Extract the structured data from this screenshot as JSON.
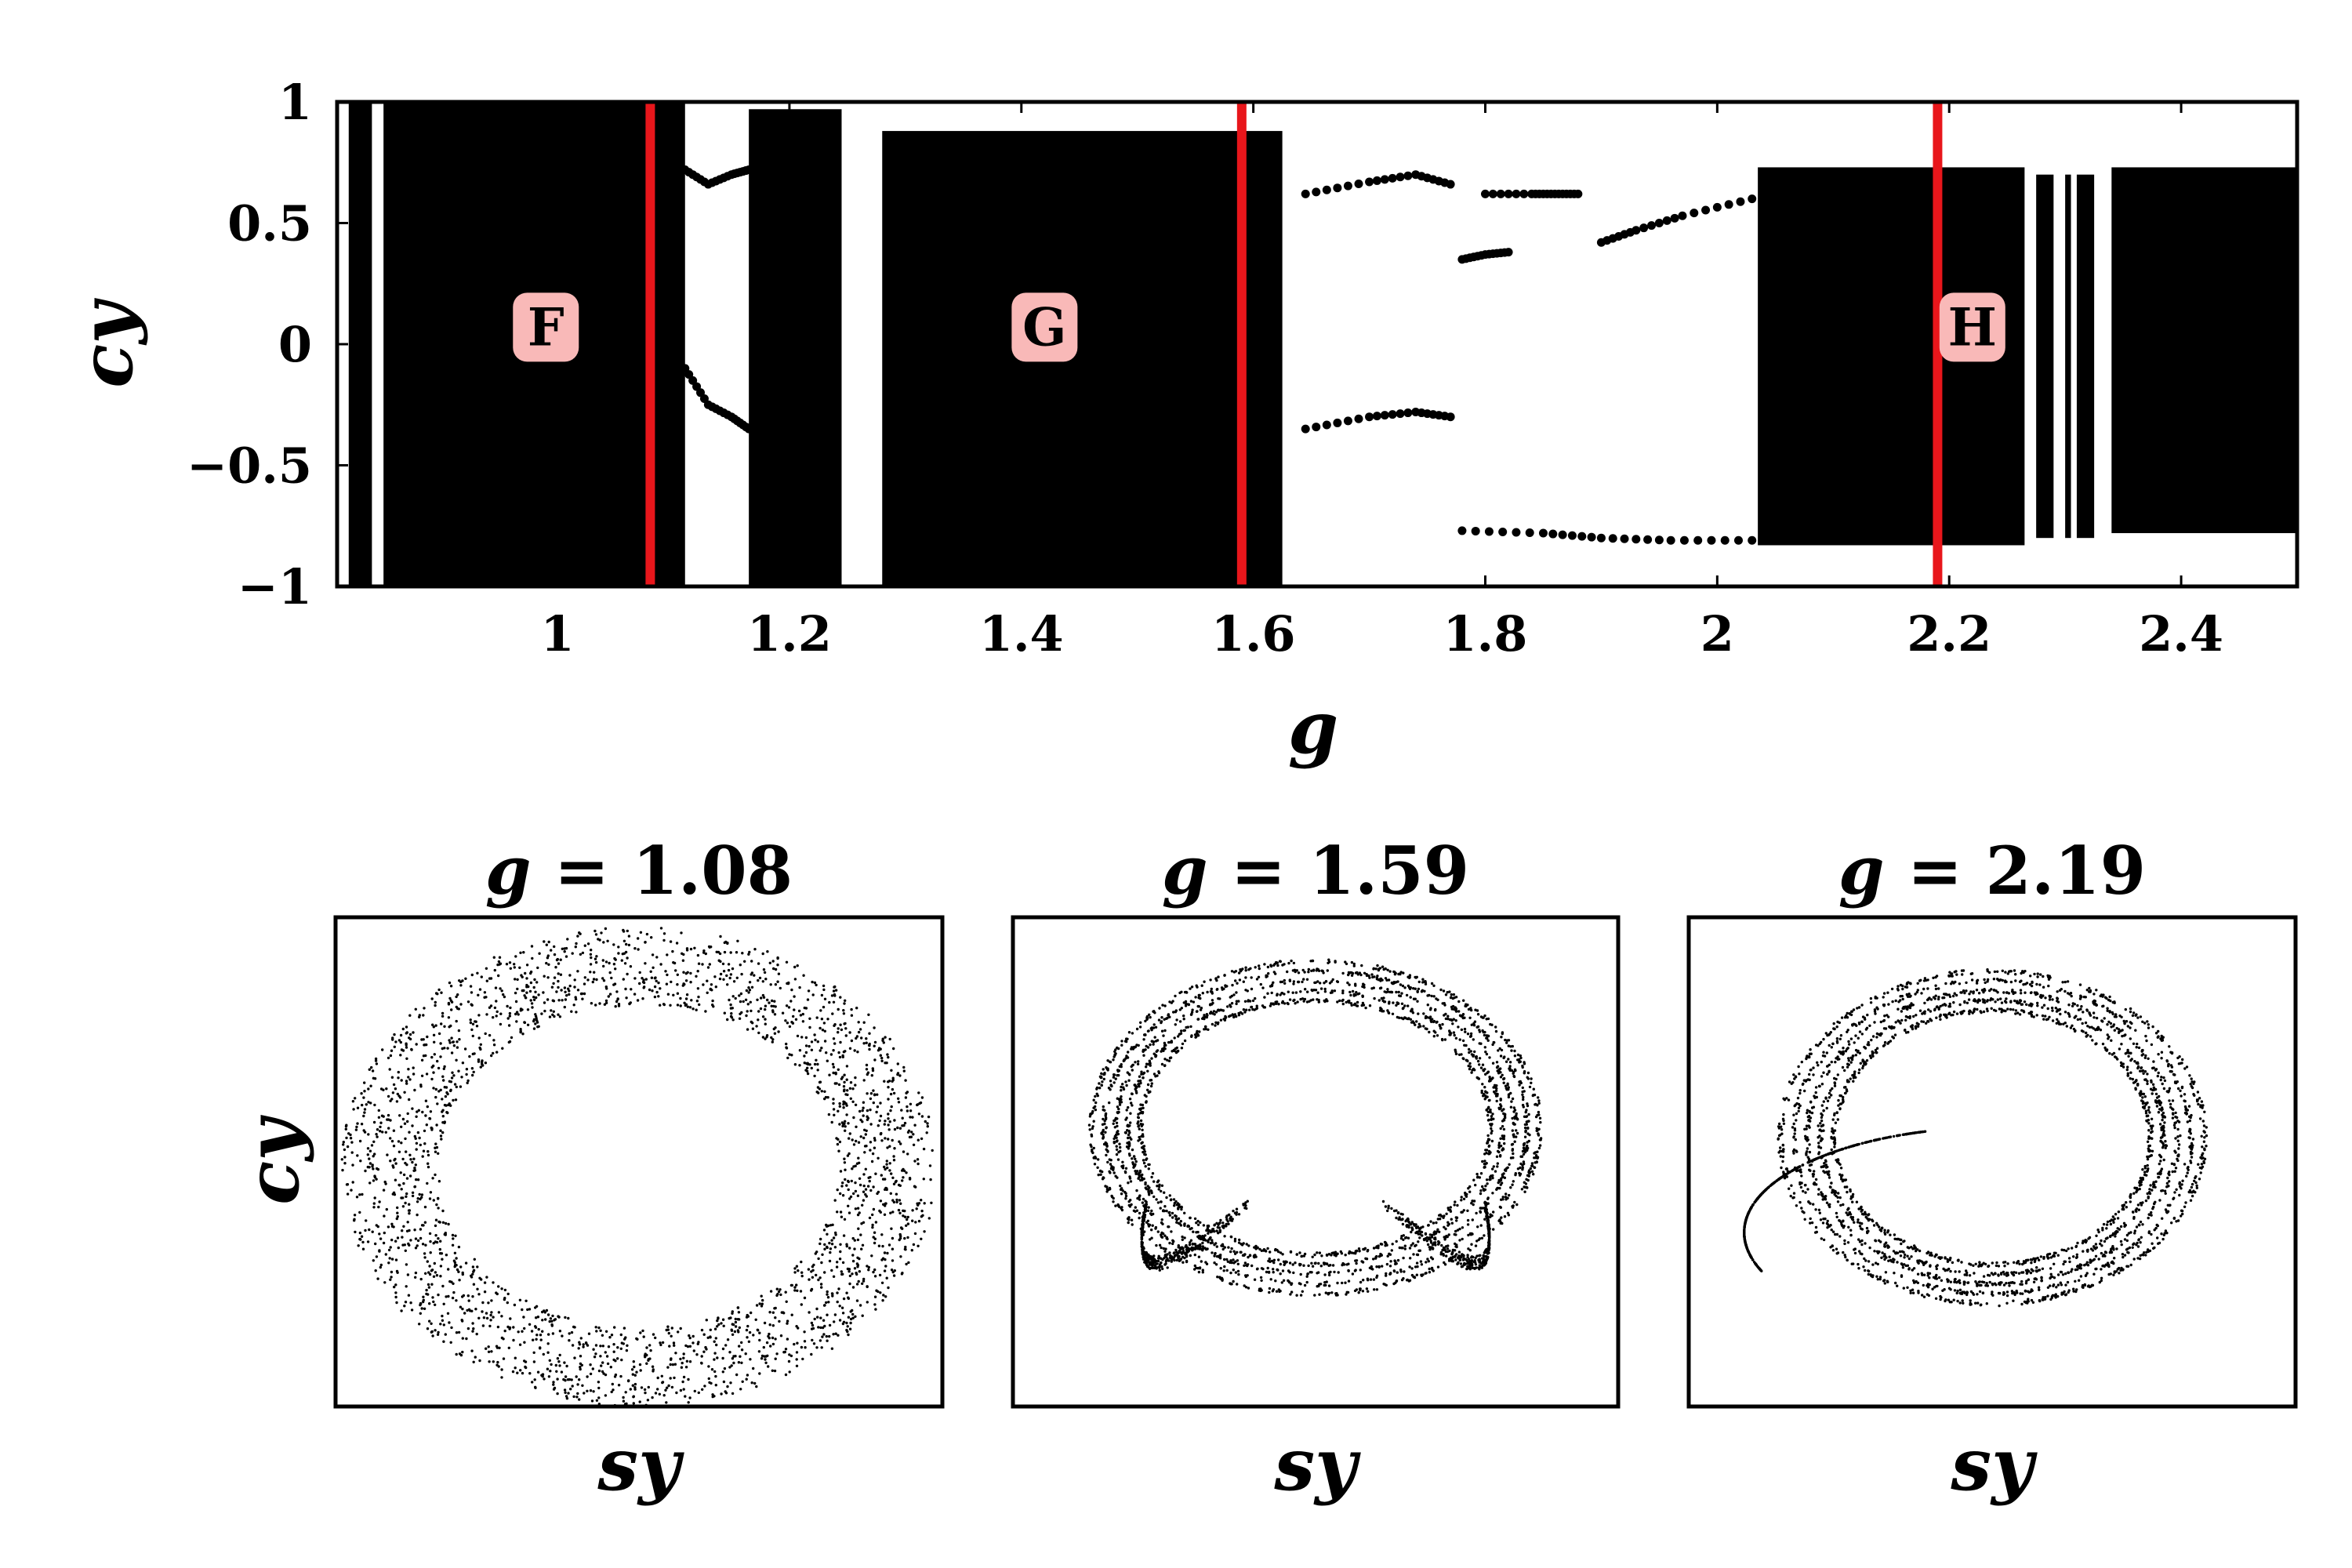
{
  "chart_data": [
    {
      "type": "scatter",
      "subtype": "bifurcation-diagram",
      "title": "",
      "xlabel": "g",
      "ylabel": "cy",
      "xlim": [
        0.81,
        2.5
      ],
      "ylim": [
        -1,
        1
      ],
      "x_ticks": [
        1,
        1.2,
        1.4,
        1.6,
        1.8,
        2,
        2.2,
        2.4
      ],
      "x_tick_labels": [
        "1",
        "1.2",
        "1.4",
        "1.6",
        "1.8",
        "2",
        "2.2",
        "2.4"
      ],
      "y_ticks": [
        1,
        0.5,
        0,
        -0.5,
        -1
      ],
      "y_tick_labels": [
        "1",
        "0.5",
        "0",
        "−0.5",
        "−1"
      ],
      "grid": false,
      "point_color": "#000000",
      "chaotic_bands": [
        {
          "g": [
            0.82,
            0.84
          ],
          "cy": [
            -1,
            1
          ]
        },
        {
          "g": [
            0.85,
            1.11
          ],
          "cy": [
            -1,
            1
          ]
        },
        {
          "g": [
            1.165,
            1.245
          ],
          "cy": [
            -1,
            0.97
          ]
        },
        {
          "g": [
            1.28,
            1.625
          ],
          "cy": [
            -1,
            0.88
          ]
        },
        {
          "g": [
            2.035,
            2.265
          ],
          "cy": [
            -0.83,
            0.73
          ]
        },
        {
          "g": [
            2.275,
            2.29
          ],
          "cy": [
            -0.8,
            0.7
          ]
        },
        {
          "g": [
            2.3,
            2.305
          ],
          "cy": [
            -0.8,
            0.7
          ]
        },
        {
          "g": [
            2.31,
            2.325
          ],
          "cy": [
            -0.8,
            0.7
          ]
        },
        {
          "g": [
            2.34,
            2.5
          ],
          "cy": [
            -0.78,
            0.73
          ]
        }
      ],
      "periodic_branches": [
        {
          "name": "",
          "x": [
            1.11,
            1.13,
            1.15,
            1.165
          ],
          "y": [
            0.72,
            0.66,
            0.7,
            0.72
          ]
        },
        {
          "name": "",
          "x": [
            1.11,
            1.13,
            1.15,
            1.165
          ],
          "y": [
            -0.1,
            -0.25,
            -0.3,
            -0.35
          ]
        },
        {
          "name": "",
          "x": [
            1.645,
            1.7,
            1.74,
            1.77
          ],
          "y": [
            0.62,
            0.67,
            0.7,
            0.66
          ]
        },
        {
          "name": "",
          "x": [
            1.645,
            1.7,
            1.74,
            1.77
          ],
          "y": [
            -0.35,
            -0.3,
            -0.28,
            -0.3
          ]
        },
        {
          "name": "",
          "x": [
            1.8,
            1.84,
            1.86,
            1.88
          ],
          "y": [
            0.62,
            0.62,
            0.62,
            0.62
          ]
        },
        {
          "name": "",
          "x": [
            1.78,
            1.8,
            1.82
          ],
          "y": [
            0.35,
            0.37,
            0.38
          ]
        },
        {
          "name": "",
          "x": [
            1.9,
            1.93,
            1.97,
            2.03
          ],
          "y": [
            0.42,
            0.47,
            0.53,
            0.6
          ]
        },
        {
          "name": "",
          "x": [
            1.78,
            1.85,
            1.9,
            1.96,
            2.03
          ],
          "y": [
            -0.77,
            -0.78,
            -0.8,
            -0.81,
            -0.81
          ]
        }
      ],
      "markers": [
        {
          "g": 1.08,
          "color": "#e8161b"
        },
        {
          "g": 1.59,
          "color": "#e8161b"
        },
        {
          "g": 2.19,
          "color": "#e8161b"
        }
      ],
      "annotations": [
        {
          "text": "F",
          "g": 0.99,
          "cy": 0.07,
          "box_color": "#f9b9b8"
        },
        {
          "text": "G",
          "g": 1.42,
          "cy": 0.07,
          "box_color": "#f9b9b8"
        },
        {
          "text": "H",
          "g": 2.22,
          "cy": 0.07,
          "box_color": "#f9b9b8"
        }
      ]
    },
    {
      "type": "scatter",
      "subtype": "attractor",
      "title_var": "g",
      "title_eq": " = 1.08",
      "xlabel": "sy",
      "ylabel": "cy",
      "point_color": "#000000",
      "shape": "thick-ring",
      "ring": {
        "outer_rx": 0.98,
        "outer_ry": 0.98,
        "inner_rx": 0.66,
        "inner_ry": 0.66,
        "center_y": -0.02
      },
      "density": "uniform"
    },
    {
      "type": "scatter",
      "subtype": "attractor",
      "title_var": "g",
      "title_eq": " = 1.59",
      "xlabel": "sy",
      "ylabel": "",
      "point_color": "#000000",
      "shape": "ring-with-tails",
      "ring": {
        "outer_rx": 0.76,
        "outer_ry": 0.7,
        "inner_rx": 0.56,
        "inner_ry": 0.5,
        "center_y": 0.14
      },
      "density": "banded"
    },
    {
      "type": "scatter",
      "subtype": "attractor",
      "title_var": "g",
      "title_eq": " = 2.19",
      "xlabel": "sy",
      "ylabel": "",
      "point_color": "#000000",
      "shape": "spiral-ring",
      "ring": {
        "outer_rx": 0.72,
        "outer_ry": 0.7,
        "inner_rx": 0.5,
        "inner_ry": 0.5,
        "center_y": 0.1
      },
      "density": "banded"
    }
  ]
}
